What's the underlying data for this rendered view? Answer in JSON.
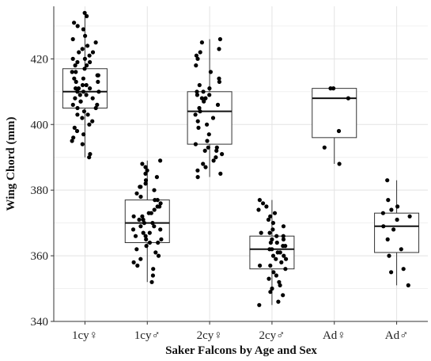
{
  "chart_data": {
    "type": "boxplot",
    "xlabel": "Saker Falcons by Age and Sex",
    "ylabel": "Wing Chord (mm)",
    "ylim": [
      340,
      436
    ],
    "yticks": [
      340,
      360,
      380,
      400,
      420
    ],
    "grid": true,
    "categories": [
      "1cy♀",
      "1cy♂",
      "2cy♀",
      "2cy♂",
      "Ad♀",
      "Ad♂"
    ],
    "boxes": [
      {
        "category": "1cy♀",
        "whisker_low": 390,
        "q1": 405,
        "median": 410,
        "q3": 417,
        "whisker_high": 434
      },
      {
        "category": "1cy♂",
        "whisker_low": 352,
        "q1": 364,
        "median": 370,
        "q3": 377,
        "whisker_high": 389
      },
      {
        "category": "2cy♀",
        "whisker_low": 384,
        "q1": 394,
        "median": 404,
        "q3": 410,
        "whisker_high": 426
      },
      {
        "category": "2cy♂",
        "whisker_low": 345,
        "q1": 356,
        "median": 362,
        "q3": 366,
        "whisker_high": 377
      },
      {
        "category": "Ad♀",
        "whisker_low": 388,
        "q1": 396,
        "median": 408,
        "q3": 411,
        "whisker_high": 411
      },
      {
        "category": "Ad♂",
        "whisker_low": 351,
        "q1": 361,
        "median": 369,
        "q3": 373,
        "whisker_high": 383
      }
    ],
    "points": [
      {
        "category": "1cy♀",
        "values": [
          434,
          433,
          431,
          430,
          429,
          427,
          426,
          425,
          424,
          423,
          422,
          422,
          421,
          420,
          420,
          419,
          419,
          418,
          418,
          417,
          416,
          416,
          415,
          415,
          414,
          414,
          413,
          413,
          412,
          412,
          411,
          411,
          411,
          410,
          410,
          410,
          409,
          409,
          408,
          408,
          407,
          407,
          406,
          406,
          405,
          405,
          404,
          403,
          403,
          402,
          401,
          400,
          399,
          398,
          397,
          396,
          395,
          394,
          391,
          390
        ]
      },
      {
        "category": "1cy♂",
        "values": [
          389,
          388,
          387,
          386,
          385,
          384,
          383,
          382,
          381,
          381,
          380,
          379,
          378,
          377,
          377,
          376,
          375,
          375,
          374,
          373,
          373,
          372,
          372,
          371,
          371,
          370,
          370,
          369,
          369,
          368,
          368,
          367,
          367,
          366,
          366,
          365,
          365,
          364,
          364,
          363,
          362,
          361,
          360,
          359,
          358,
          357,
          356,
          354,
          352
        ]
      },
      {
        "category": "2cy♀",
        "values": [
          426,
          425,
          423,
          422,
          421,
          420,
          418,
          416,
          414,
          413,
          412,
          411,
          410,
          410,
          409,
          409,
          408,
          408,
          407,
          406,
          405,
          404,
          403,
          402,
          401,
          400,
          399,
          397,
          395,
          394,
          393,
          393,
          392,
          392,
          391,
          390,
          389,
          388,
          387,
          386,
          385,
          384
        ]
      },
      {
        "category": "2cy♂",
        "values": [
          377,
          376,
          375,
          374,
          373,
          372,
          371,
          370,
          369,
          368,
          367,
          367,
          366,
          366,
          365,
          365,
          364,
          364,
          363,
          363,
          362,
          362,
          361,
          361,
          360,
          360,
          359,
          359,
          358,
          357,
          357,
          356,
          355,
          354,
          353,
          352,
          351,
          350,
          349,
          348,
          346,
          345
        ]
      },
      {
        "category": "Ad♀",
        "values": [
          411,
          411,
          408,
          398,
          393,
          388
        ]
      },
      {
        "category": "Ad♂",
        "values": [
          383,
          377,
          375,
          374,
          373,
          372,
          371,
          369,
          368,
          365,
          362,
          360,
          356,
          355,
          351
        ]
      }
    ]
  }
}
